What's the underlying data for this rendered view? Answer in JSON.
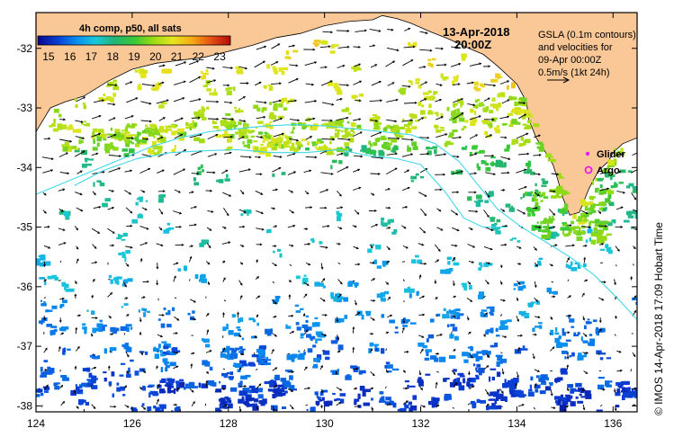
{
  "title": {
    "date": "13-Apr-2018",
    "time": "20:00Z"
  },
  "colorbar": {
    "title": "4h comp, p50, all sats",
    "ticks": [
      "15",
      "16",
      "17",
      "18",
      "19",
      "20",
      "21",
      "22",
      "23"
    ],
    "min": 14.5,
    "max": 23.5,
    "colors": [
      "#08088c",
      "#0a3cd2",
      "#0a8cf0",
      "#19c8dc",
      "#23b473",
      "#37c837",
      "#9bdc14",
      "#e6e61e",
      "#f5aa14",
      "#e65014",
      "#b40a0a"
    ]
  },
  "gsla_legend": {
    "line1": "GSLA (0.1m contours)",
    "line2": "and velocities for",
    "line3": "09-Apr 00:00Z",
    "line4": "0.5m/s (1kt 24h)"
  },
  "markers": {
    "glider_label": "Glider",
    "argo_label": "Argo",
    "glider_color": "#e61ee6",
    "argo_color": "#e61ee6"
  },
  "credit": "© IMOS 14-Apr-2018 17:09 Hobart Time",
  "map_data": {
    "type": "sst-map",
    "lon_range": [
      124,
      136.5
    ],
    "lat_range": [
      -38.1,
      -31.4
    ],
    "x_ticks": [
      "124",
      "126",
      "128",
      "130",
      "132",
      "134",
      "136"
    ],
    "y_ticks": [
      "-32",
      "-33",
      "-34",
      "-35",
      "-36",
      "-37",
      "-38"
    ],
    "land_color": "#fac896",
    "coastline": [
      [
        124.0,
        -33.4
      ],
      [
        124.3,
        -33.0
      ],
      [
        124.6,
        -32.9
      ],
      [
        125.0,
        -32.8
      ],
      [
        125.5,
        -32.55
      ],
      [
        126.0,
        -32.35
      ],
      [
        126.5,
        -32.25
      ],
      [
        127.0,
        -32.2
      ],
      [
        127.5,
        -32.15
      ],
      [
        128.0,
        -32.05
      ],
      [
        128.5,
        -31.95
      ],
      [
        129.0,
        -31.82
      ],
      [
        129.5,
        -31.75
      ],
      [
        130.0,
        -31.62
      ],
      [
        130.5,
        -31.55
      ],
      [
        131.0,
        -31.52
      ],
      [
        131.2,
        -31.45
      ],
      [
        131.5,
        -31.5
      ],
      [
        131.8,
        -31.58
      ],
      [
        132.2,
        -31.72
      ],
      [
        132.6,
        -31.85
      ],
      [
        133.0,
        -32.0
      ],
      [
        133.3,
        -32.1
      ],
      [
        133.6,
        -32.3
      ],
      [
        134.0,
        -32.6
      ],
      [
        134.2,
        -32.9
      ],
      [
        134.25,
        -33.2
      ],
      [
        134.4,
        -33.5
      ],
      [
        134.6,
        -33.75
      ],
      [
        134.75,
        -33.95
      ],
      [
        134.85,
        -34.2
      ],
      [
        134.95,
        -34.5
      ],
      [
        135.1,
        -34.8
      ],
      [
        135.3,
        -34.75
      ],
      [
        135.5,
        -34.35
      ],
      [
        135.7,
        -34.05
      ],
      [
        135.9,
        -33.9
      ],
      [
        136.0,
        -33.75
      ],
      [
        136.2,
        -33.6
      ],
      [
        136.5,
        -33.5
      ]
    ],
    "contours": [
      [
        [
          124.0,
          -34.45
        ],
        [
          124.6,
          -34.25
        ],
        [
          125.2,
          -34.05
        ],
        [
          125.8,
          -33.85
        ],
        [
          126.4,
          -33.65
        ],
        [
          127.0,
          -33.5
        ],
        [
          127.6,
          -33.4
        ],
        [
          128.2,
          -33.35
        ],
        [
          128.8,
          -33.3
        ],
        [
          129.4,
          -33.28
        ],
        [
          130.0,
          -33.3
        ],
        [
          130.6,
          -33.35
        ],
        [
          131.2,
          -33.4
        ],
        [
          131.8,
          -33.45
        ],
        [
          132.3,
          -33.6
        ],
        [
          132.8,
          -33.9
        ],
        [
          133.2,
          -34.3
        ],
        [
          133.6,
          -34.7
        ],
        [
          134.1,
          -35.0
        ],
        [
          134.6,
          -35.25
        ],
        [
          135.1,
          -35.5
        ],
        [
          135.6,
          -35.8
        ],
        [
          136.1,
          -36.2
        ],
        [
          136.5,
          -36.55
        ]
      ],
      [
        [
          124.8,
          -34.3
        ],
        [
          125.4,
          -34.05
        ],
        [
          126.1,
          -33.85
        ],
        [
          126.8,
          -33.75
        ],
        [
          127.5,
          -33.72
        ],
        [
          128.2,
          -33.7
        ],
        [
          128.9,
          -33.75
        ],
        [
          129.6,
          -33.75
        ],
        [
          130.3,
          -33.7
        ],
        [
          130.9,
          -33.8
        ],
        [
          131.5,
          -33.85
        ],
        [
          132.0,
          -33.95
        ],
        [
          132.5,
          -34.4
        ],
        [
          132.9,
          -34.85
        ],
        [
          133.3,
          -35.0
        ],
        [
          133.8,
          -35.0
        ]
      ]
    ],
    "sst_seed": 1337,
    "glider": [
      134.85,
      -34.2
    ],
    "argo": [
      134.85,
      -34.45
    ]
  }
}
